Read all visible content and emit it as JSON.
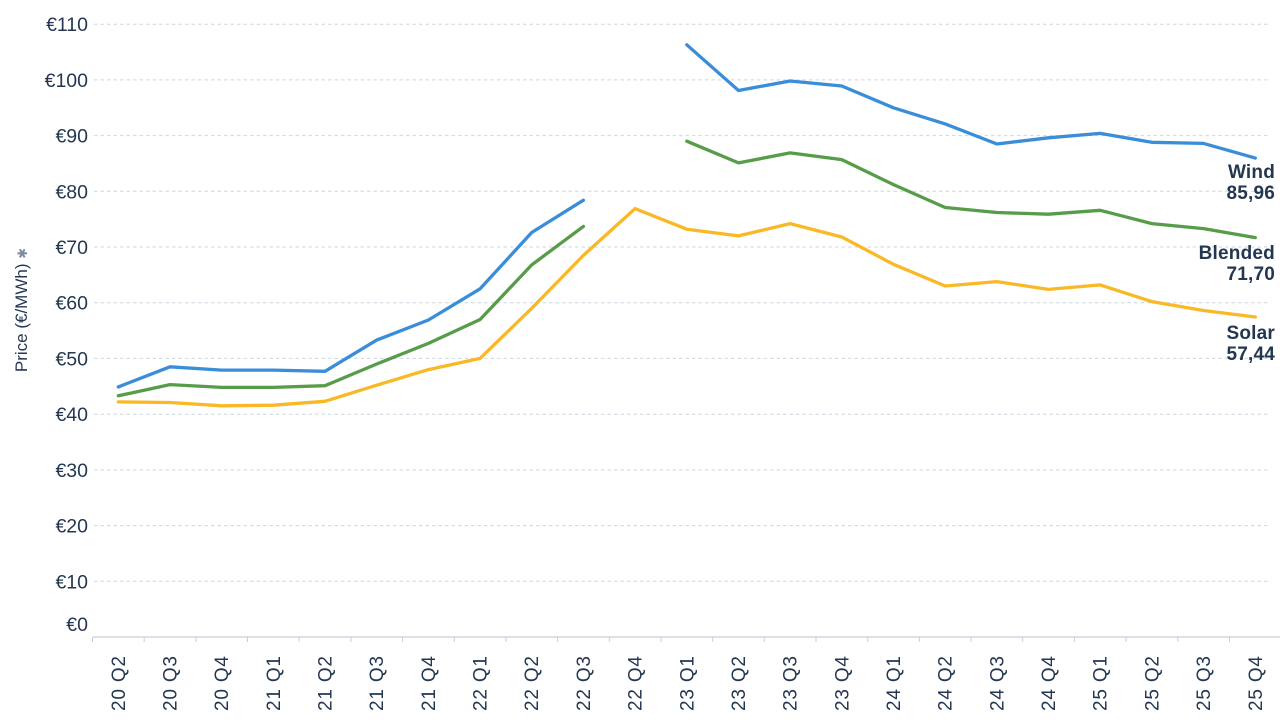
{
  "page": {
    "background": "#ffffff",
    "text_color": "#243751",
    "gridline_color": "#CCD7E3",
    "axis_color": "#C6CFD9",
    "note_color": "#7B8CA2"
  },
  "chart_data": {
    "type": "line",
    "title": "",
    "y_axis_title": "Price (€/MWh)",
    "y_axis_note_symbol": "✱",
    "y_tick_prefix": "€",
    "ylim": [
      0,
      110
    ],
    "y_tick_step": 10,
    "grid": true,
    "legend_position": "end-of-line-labels",
    "categories": [
      "20 Q2",
      "20 Q3",
      "20 Q4",
      "21 Q1",
      "21 Q2",
      "21 Q3",
      "21 Q4",
      "22 Q1",
      "22 Q2",
      "22 Q3",
      "22 Q4",
      "23 Q1",
      "23 Q2",
      "23 Q3",
      "23 Q4",
      "24 Q1",
      "24 Q2",
      "24 Q3",
      "24 Q4",
      "25 Q1",
      "25 Q2",
      "25 Q3",
      "25 Q4"
    ],
    "series": [
      {
        "name": "Wind",
        "color": "#3A8DD8",
        "values": [
          44.9,
          48.5,
          47.9,
          47.9,
          47.7,
          53.3,
          56.9,
          62.5,
          72.6,
          78.4,
          null,
          106.3,
          98.1,
          99.8,
          98.9,
          95.0,
          92.1,
          88.5,
          89.6,
          90.4,
          88.8,
          88.6,
          85.96
        ],
        "end_label": {
          "name": "Wind",
          "value": "85,96"
        }
      },
      {
        "name": "Blended",
        "color": "#579C48",
        "values": [
          43.3,
          45.3,
          44.8,
          44.8,
          45.1,
          49.0,
          52.7,
          57.0,
          66.8,
          73.7,
          null,
          89.0,
          85.1,
          86.9,
          85.7,
          81.2,
          77.1,
          76.2,
          75.9,
          76.6,
          74.2,
          73.3,
          71.7
        ],
        "end_label": {
          "name": "Blended",
          "value": "71,70"
        }
      },
      {
        "name": "Solar",
        "color": "#F9B826",
        "values": [
          42.2,
          42.1,
          41.5,
          41.6,
          42.3,
          45.2,
          48.0,
          50.0,
          59.0,
          68.5,
          76.9,
          73.2,
          72.0,
          74.2,
          71.8,
          66.9,
          63.0,
          63.8,
          62.4,
          63.2,
          60.2,
          58.6,
          57.44
        ],
        "end_label": {
          "name": "Solar",
          "value": "57,44"
        }
      }
    ]
  }
}
